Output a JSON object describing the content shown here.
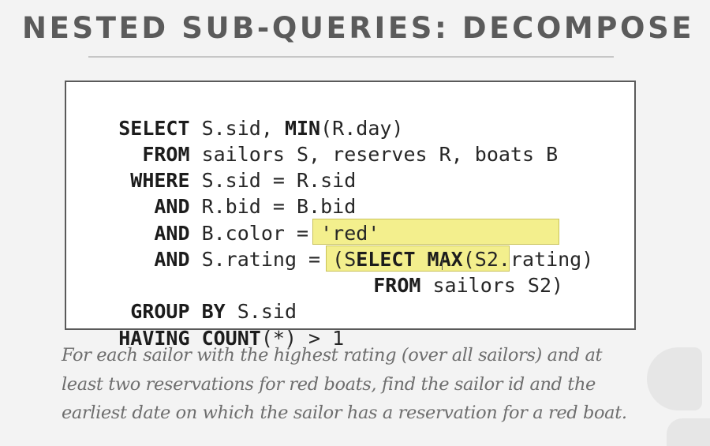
{
  "slide": {
    "title": "NESTED SUB-QUERIES: DECOMPOSE"
  },
  "sql_code": {
    "lines": [
      {
        "kw": "SELECT",
        "rest": " S.sid, ",
        "kw2": "MIN",
        "rest2": "(R.day)"
      },
      {
        "kw": "  FROM",
        "rest": " sailors S, reserves R, boats B"
      },
      {
        "kw": " WHERE",
        "rest": " S.sid = R.sid"
      },
      {
        "kw": "   AND",
        "rest": " R.bid = B.bid"
      },
      {
        "kw": "   AND",
        "rest": " B.color = 'red'"
      },
      {
        "kw": "   AND",
        "rest": " S.rating = (S",
        "kw2": "ELECT MAX",
        "rest2": "(S2.rating)"
      },
      {
        "kw": "FROM",
        "rest": " sailors S2)"
      },
      {
        "kw": " GROUP BY",
        "rest": " S.sid"
      },
      {
        "kw": "HAVING COUNT",
        "rest": "(*) > 1"
      }
    ]
  },
  "description": {
    "line1": "For each sailor with the highest rating (over all sailors) and at",
    "line2": "least two reservations for red boats, find the sailor id and the",
    "line3": "earliest date on which the sailor has a reservation for a red boat."
  },
  "colors": {
    "highlight": "#f3ef8d",
    "title": "#5b5b5b",
    "description": "#6e6e6e"
  }
}
